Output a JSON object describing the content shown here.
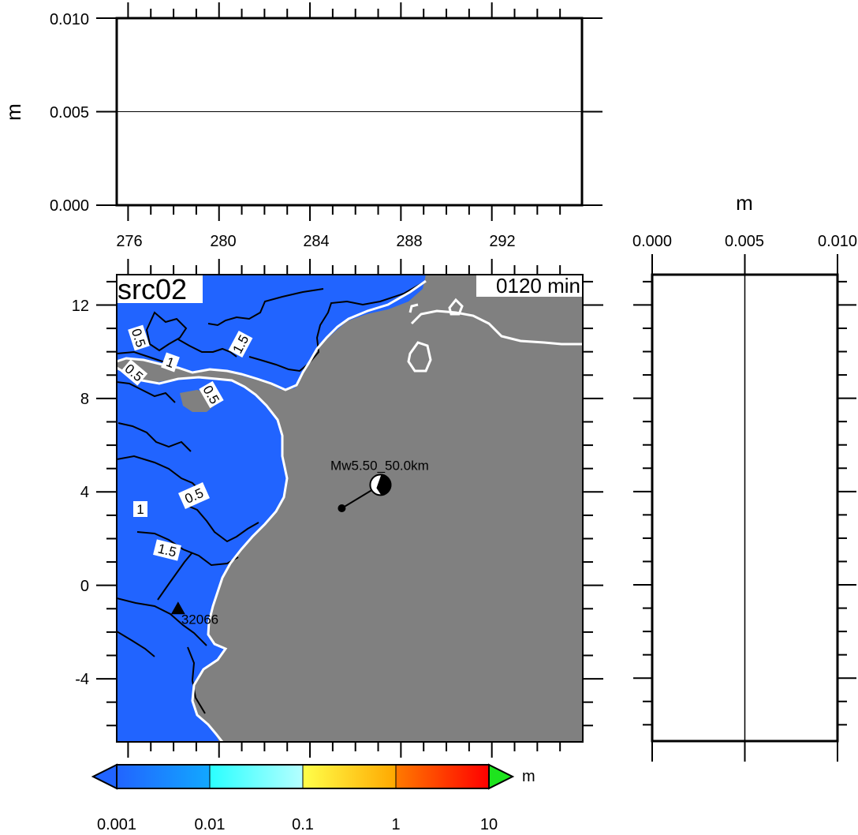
{
  "chart_data": [
    {
      "id": "timeseries_top",
      "type": "line",
      "xlabel": "",
      "ylabel": "m",
      "xlim": [
        275.5,
        296.0
      ],
      "ylim": [
        0.0,
        0.01
      ],
      "x_ticks": [
        "276",
        "280",
        "284",
        "288",
        "292"
      ],
      "y_ticks": [
        "0.000",
        "0.005",
        "0.010"
      ],
      "series": [
        {
          "x": [
            275.5,
            296.0
          ],
          "y": [
            0.005,
            0.005
          ]
        }
      ]
    },
    {
      "id": "map",
      "type": "heatmap",
      "title": "src02",
      "time_label": "0120 min",
      "xlim": [
        275.5,
        296.0
      ],
      "ylim": [
        -6.7,
        13.3
      ],
      "y_ticks": [
        "12",
        "8",
        "4",
        "0",
        "-4"
      ],
      "contour_labels": [
        "0.5",
        "1",
        "0.5",
        "1.5",
        "0.5",
        "0.5",
        "1",
        "1.5"
      ],
      "source": {
        "label": "Mw5.50_50.0km",
        "beachball_x": 287.1,
        "beachball_y": 4.3,
        "epicenter_x": 285.4,
        "epicenter_y": 3.3
      },
      "station": {
        "label": "32066",
        "x": 278.2,
        "y": -1.0
      },
      "colors": {
        "ocean": "#2164ff",
        "land": "#808080",
        "coast": "#ffffff"
      }
    },
    {
      "id": "profile_right",
      "type": "line",
      "xlabel": "m",
      "xlim": [
        0.0,
        0.01
      ],
      "x_ticks": [
        "0.000",
        "0.005",
        "0.010"
      ],
      "series": [
        {
          "x": [
            0.005,
            0.005
          ],
          "y": [
            -6.7,
            13.3
          ]
        }
      ]
    }
  ],
  "colorbar": {
    "unit": "m",
    "tick_labels": [
      "0.001",
      "0.01",
      "0.1",
      "1",
      "10"
    ],
    "colors": {
      "low_arrow": "#2164ff",
      "high_arrow": "#1ee41e",
      "segments": [
        [
          "#2164ff",
          "#12a8ff"
        ],
        [
          "#2affff",
          "#b5ffff"
        ],
        [
          "#ffff4a",
          "#ffa800"
        ],
        [
          "#ff7a00",
          "#ff0000"
        ]
      ]
    }
  }
}
